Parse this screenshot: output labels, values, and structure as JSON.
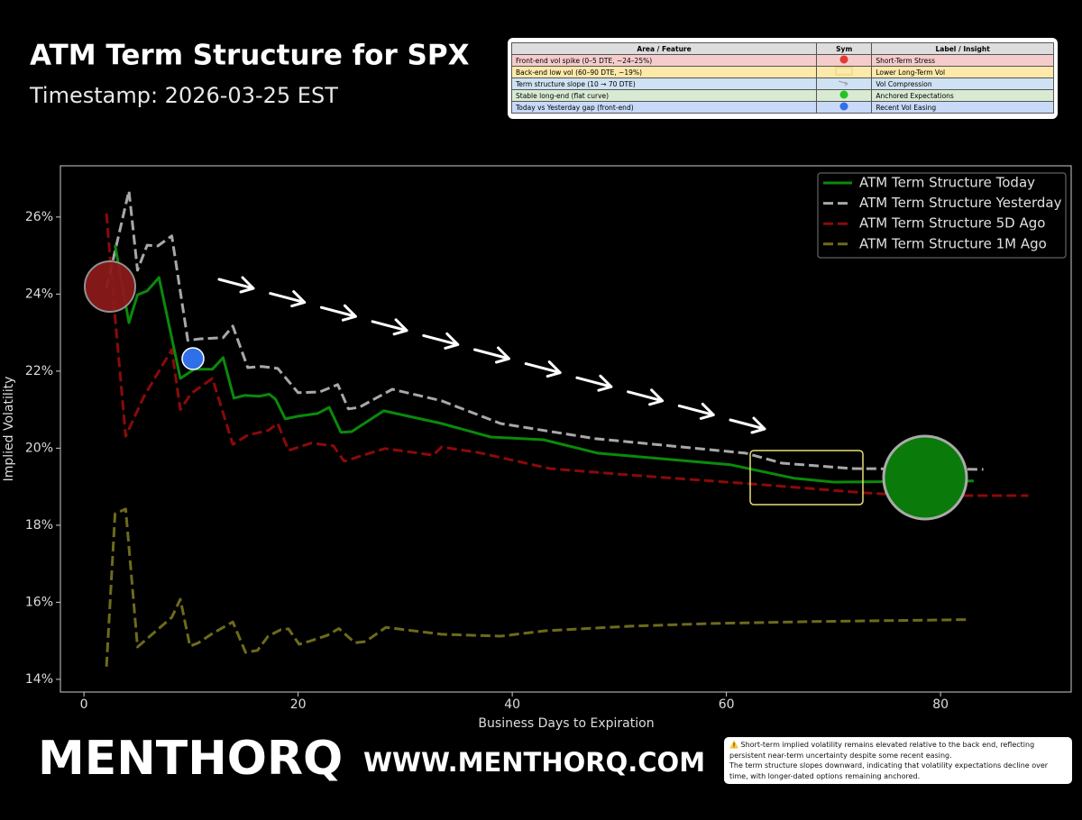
{
  "chart_data": {
    "type": "line",
    "title": "ATM Term Structure for SPX",
    "subtitle": "Timestamp: 2026-03-25 EST",
    "x_label": "Business Days to Expiration",
    "y_label": "Implied Volatility",
    "xlim": [
      -2.2,
      92.2
    ],
    "ylim": [
      13.67,
      27.33
    ],
    "xticks": [
      0,
      20,
      40,
      60,
      80
    ],
    "yticks": [
      {
        "value": 14,
        "label": "14%"
      },
      {
        "value": 16,
        "label": "16%"
      },
      {
        "value": 18,
        "label": "18%"
      },
      {
        "value": 20,
        "label": "20%"
      },
      {
        "value": 22,
        "label": "22%"
      },
      {
        "value": 24,
        "label": "24%"
      },
      {
        "value": 26,
        "label": "26%"
      }
    ],
    "grid": false,
    "legend": "upper right",
    "series": [
      {
        "name": "ATM Term Structure Today",
        "color": "#0a8a0a",
        "linestyle": "solid",
        "x": [
          2.9,
          4.2,
          5,
          5.9,
          7,
          9,
          10.3,
          12,
          13,
          14,
          15,
          16.4,
          17.3,
          17.9,
          18.8,
          20,
          21.8,
          22.9,
          24,
          25,
          28,
          33.4,
          38,
          42.9,
          48,
          60.4,
          66.3,
          70,
          83.1
        ],
        "values": [
          25.27,
          23.26,
          23.98,
          24.08,
          24.43,
          21.81,
          22.05,
          22.05,
          22.35,
          21.3,
          21.37,
          21.35,
          21.4,
          21.27,
          20.76,
          20.83,
          20.9,
          21.06,
          20.41,
          20.43,
          20.97,
          20.64,
          20.29,
          20.22,
          19.87,
          19.57,
          19.22,
          19.12,
          19.15
        ]
      },
      {
        "name": "ATM Term Structure Yesterday",
        "color": "#a8a8a8",
        "linestyle": "dashed",
        "x": [
          2.1,
          4.2,
          5,
          5.9,
          6.9,
          8.2,
          9.7,
          10.9,
          13,
          13.9,
          15.3,
          16.6,
          18.1,
          20,
          22,
          23.7,
          24.7,
          25.7,
          28.8,
          33.4,
          38.9,
          47.7,
          61.8,
          65.2,
          71.7,
          84
        ],
        "values": [
          24.15,
          26.68,
          24.62,
          25.27,
          25.25,
          25.51,
          22.8,
          22.84,
          22.87,
          23.17,
          22.09,
          22.12,
          22.07,
          21.44,
          21.46,
          21.65,
          21.02,
          21.06,
          21.53,
          21.23,
          20.64,
          20.25,
          19.87,
          19.61,
          19.47,
          19.45
        ]
      },
      {
        "name": "ATM Term Structure 5D Ago",
        "color": "#8b0a0a",
        "linestyle": "dashed",
        "x": [
          2.1,
          2.7,
          3.9,
          5.6,
          8.2,
          9,
          10,
          12,
          13.9,
          15.3,
          17.2,
          18.1,
          19.1,
          21.2,
          23.3,
          24.3,
          26.7,
          28.1,
          32.6,
          33.4,
          36.8,
          43.5,
          50.7,
          62,
          73,
          77.6,
          88.2
        ],
        "values": [
          26.09,
          24.03,
          20.31,
          21.34,
          22.56,
          21.0,
          21.42,
          21.81,
          20.1,
          20.34,
          20.46,
          20.64,
          19.94,
          20.13,
          20.06,
          19.66,
          19.87,
          19.99,
          19.82,
          20.03,
          19.89,
          19.47,
          19.31,
          19.08,
          18.84,
          18.77,
          18.77
        ]
      },
      {
        "name": "ATM Term Structure 1M Ago",
        "color": "#6e6a1c",
        "linestyle": "dashed",
        "x": [
          2.1,
          2.9,
          3.9,
          5,
          8.2,
          9,
          9.9,
          10.7,
          12,
          13.9,
          15.1,
          16.2,
          17.2,
          18.4,
          19.1,
          20.1,
          21.2,
          22.7,
          23.8,
          25.3,
          26.3,
          28.2,
          33.4,
          38.9,
          43.1,
          51.1,
          58.7,
          68,
          82.7
        ],
        "values": [
          14.33,
          18.3,
          18.42,
          14.84,
          15.61,
          16.08,
          14.86,
          14.95,
          15.19,
          15.49,
          14.7,
          14.75,
          15.12,
          15.29,
          15.31,
          14.91,
          15.0,
          15.14,
          15.32,
          14.95,
          14.98,
          15.35,
          15.17,
          15.12,
          15.26,
          15.38,
          15.45,
          15.5,
          15.55
        ]
      }
    ]
  },
  "table": {
    "headers": [
      "Area / Feature",
      "Sym",
      "Label / Insight"
    ],
    "rows": [
      {
        "area": "Front-end vol spike (0–5 DTE, ~24–25%)",
        "insight": "Short-Term Stress"
      },
      {
        "area": "Back-end low vol (60–90 DTE, ~19%)",
        "insight": "Lower Long-Term Vol"
      },
      {
        "area": "Term structure slope (10 → 70 DTE)",
        "insight": "Vol Compression"
      },
      {
        "area": "Stable long-end (flat curve)",
        "insight": "Anchored Expectations"
      },
      {
        "area": "Today vs Yesterday gap (front-end)",
        "insight": "Recent Vol Easing"
      }
    ]
  },
  "logo": {
    "brand": "MENTHORQ",
    "url": "WWW.MENTHORQ.COM"
  },
  "note": {
    "lines": [
      "⚠️ Short-term implied volatility remains elevated relative to the back end, reflecting persistent near-term uncertainty despite some recent easing.",
      "The term structure slopes downward, indicating that volatility expectations decline over time, with longer-dated options remaining anchored."
    ]
  }
}
